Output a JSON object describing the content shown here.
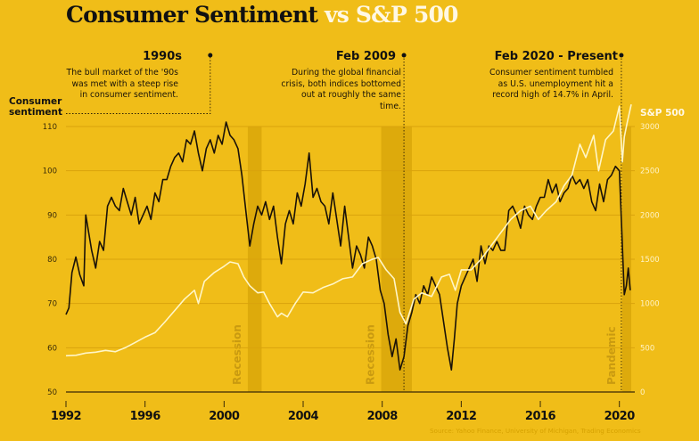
{
  "title": {
    "part1": "Consumer Sentiment",
    "part2": "vs S&P 500"
  },
  "annotations": [
    {
      "heading": "1990s",
      "text": "The bull market of the '90s was met with a steep rise in consumer sentiment."
    },
    {
      "heading": "Feb 2009",
      "text": "During the global financial crisis, both indices bottomed out at roughly the same time."
    },
    {
      "heading": "Feb 2020 - Present",
      "text": "Consumer sentiment tumbled as U.S. unemployment hit a record high of 14.7% in April."
    }
  ],
  "source": "Source: Yahoo Finance, University of Michigan, Trading Economics",
  "chart_data": {
    "type": "line",
    "title": "Consumer Sentiment vs S&P 500",
    "xlabel": "",
    "ylabel": "Consumer sentiment",
    "y2label": "S&P 500",
    "xlim": [
      1992,
      2020.6
    ],
    "ylim": [
      50,
      110
    ],
    "y2lim": [
      0,
      3000
    ],
    "x_ticks": [
      1992,
      1996,
      2000,
      2004,
      2008,
      2012,
      2016,
      2020
    ],
    "y_ticks": [
      50,
      60,
      70,
      80,
      90,
      100,
      110
    ],
    "y2_ticks": [
      0,
      500,
      1000,
      1500,
      2000,
      2500,
      3000
    ],
    "grid": true,
    "shaded_periods": [
      {
        "label": "Recession",
        "start": 2001.2,
        "end": 2001.9
      },
      {
        "label": "Recession",
        "start": 2007.95,
        "end": 2009.5
      },
      {
        "label": "Pandemic",
        "start": 2020.15,
        "end": 2020.6
      }
    ],
    "markers": [
      {
        "label": "1990s",
        "x": 1999.3,
        "y_ref": 110.3
      },
      {
        "label": "Feb 2009",
        "x": 2009.1
      },
      {
        "label": "Feb 2020 - Present",
        "x": 2020.1
      }
    ],
    "series": [
      {
        "name": "Consumer sentiment",
        "axis": "left",
        "color": "#1a1208",
        "x": [
          1992.0,
          1992.15,
          1992.3,
          1992.5,
          1992.7,
          1992.9,
          1993.0,
          1993.15,
          1993.3,
          1993.5,
          1993.7,
          1993.9,
          1994.1,
          1994.3,
          1994.5,
          1994.7,
          1994.9,
          1995.1,
          1995.3,
          1995.5,
          1995.7,
          1995.9,
          1996.1,
          1996.3,
          1996.5,
          1996.7,
          1996.9,
          1997.1,
          1997.3,
          1997.5,
          1997.7,
          1997.9,
          1998.1,
          1998.3,
          1998.5,
          1998.7,
          1998.9,
          1999.1,
          1999.3,
          1999.5,
          1999.7,
          1999.9,
          2000.1,
          2000.3,
          2000.5,
          2000.7,
          2000.9,
          2001.1,
          2001.3,
          2001.5,
          2001.7,
          2001.9,
          2002.1,
          2002.3,
          2002.5,
          2002.7,
          2002.9,
          2003.1,
          2003.3,
          2003.5,
          2003.7,
          2003.9,
          2004.1,
          2004.3,
          2004.5,
          2004.7,
          2004.9,
          2005.1,
          2005.3,
          2005.5,
          2005.7,
          2005.9,
          2006.1,
          2006.3,
          2006.5,
          2006.7,
          2006.9,
          2007.1,
          2007.3,
          2007.5,
          2007.7,
          2007.9,
          2008.1,
          2008.3,
          2008.5,
          2008.7,
          2008.9,
          2009.1,
          2009.3,
          2009.5,
          2009.7,
          2009.9,
          2010.1,
          2010.3,
          2010.5,
          2010.7,
          2010.9,
          2011.1,
          2011.3,
          2011.5,
          2011.65,
          2011.8,
          2012.0,
          2012.2,
          2012.4,
          2012.6,
          2012.8,
          2013.0,
          2013.2,
          2013.4,
          2013.6,
          2013.8,
          2014.0,
          2014.2,
          2014.4,
          2014.6,
          2014.8,
          2015.0,
          2015.2,
          2015.4,
          2015.6,
          2015.8,
          2016.0,
          2016.2,
          2016.4,
          2016.6,
          2016.8,
          2017.0,
          2017.2,
          2017.4,
          2017.6,
          2017.8,
          2018.0,
          2018.2,
          2018.4,
          2018.6,
          2018.8,
          2019.0,
          2019.2,
          2019.4,
          2019.6,
          2019.8,
          2020.0,
          2020.1,
          2020.25,
          2020.35,
          2020.45,
          2020.55
        ],
        "values": [
          67.5,
          69,
          77,
          80.5,
          76.5,
          74,
          90,
          86,
          82,
          78,
          84,
          82,
          92,
          94,
          92,
          91,
          96,
          93,
          90,
          94,
          88,
          90,
          92,
          89,
          95,
          93,
          98,
          98,
          101,
          103,
          104,
          102,
          107,
          106,
          109,
          104,
          100,
          105,
          107,
          104,
          108,
          106,
          111,
          108,
          107,
          105,
          99,
          91,
          83,
          88,
          92,
          90,
          93,
          89,
          92,
          85,
          79,
          88,
          91,
          88,
          95,
          92,
          97,
          104,
          94,
          96,
          93,
          92,
          88,
          95,
          89,
          83,
          92,
          85,
          78,
          83,
          81,
          78,
          85,
          83,
          80,
          73,
          70,
          63,
          58,
          62,
          55,
          58,
          65,
          68,
          72,
          70,
          74,
          72,
          76,
          74,
          72,
          66,
          60,
          55,
          62,
          70,
          74,
          76,
          78,
          80,
          75,
          83,
          79,
          83,
          82,
          84,
          82,
          82,
          91,
          92,
          90,
          87,
          92,
          90,
          89,
          92,
          94,
          94,
          98,
          95,
          97,
          93,
          95,
          96,
          99,
          97,
          98,
          96,
          98,
          93,
          91,
          97,
          93,
          98,
          99,
          101,
          100,
          89,
          72,
          74,
          78,
          73
        ]
      },
      {
        "name": "S&P 500",
        "axis": "right",
        "color": "#fff6c8",
        "x": [
          1992.0,
          1992.5,
          1993.0,
          1993.5,
          1994.0,
          1994.5,
          1995.0,
          1995.5,
          1996.0,
          1996.5,
          1997.0,
          1997.5,
          1998.0,
          1998.5,
          1998.7,
          1999.0,
          1999.5,
          2000.0,
          2000.3,
          2000.7,
          2001.0,
          2001.3,
          2001.7,
          2002.0,
          2002.3,
          2002.7,
          2002.9,
          2003.2,
          2003.6,
          2004.0,
          2004.5,
          2005.0,
          2005.5,
          2006.0,
          2006.5,
          2007.0,
          2007.5,
          2007.8,
          2008.2,
          2008.6,
          2008.9,
          2009.2,
          2009.6,
          2010.0,
          2010.5,
          2011.0,
          2011.4,
          2011.7,
          2012.0,
          2012.5,
          2013.0,
          2013.5,
          2014.0,
          2014.5,
          2015.0,
          2015.5,
          2015.9,
          2016.3,
          2016.8,
          2017.2,
          2017.6,
          2018.0,
          2018.3,
          2018.7,
          2018.95,
          2019.3,
          2019.7,
          2020.0,
          2020.15,
          2020.25,
          2020.4,
          2020.6
        ],
        "values": [
          410,
          415,
          440,
          450,
          470,
          455,
          500,
          560,
          620,
          670,
          790,
          920,
          1050,
          1150,
          1000,
          1250,
          1350,
          1420,
          1470,
          1450,
          1300,
          1200,
          1120,
          1130,
          1000,
          850,
          890,
          850,
          1000,
          1130,
          1120,
          1180,
          1220,
          1280,
          1300,
          1450,
          1500,
          1520,
          1380,
          1280,
          900,
          770,
          1050,
          1120,
          1080,
          1300,
          1330,
          1150,
          1380,
          1380,
          1500,
          1650,
          1800,
          1950,
          2050,
          2100,
          1950,
          2050,
          2150,
          2330,
          2450,
          2800,
          2650,
          2900,
          2500,
          2850,
          2950,
          3230,
          2600,
          2880,
          3050,
          3250
        ]
      }
    ]
  }
}
